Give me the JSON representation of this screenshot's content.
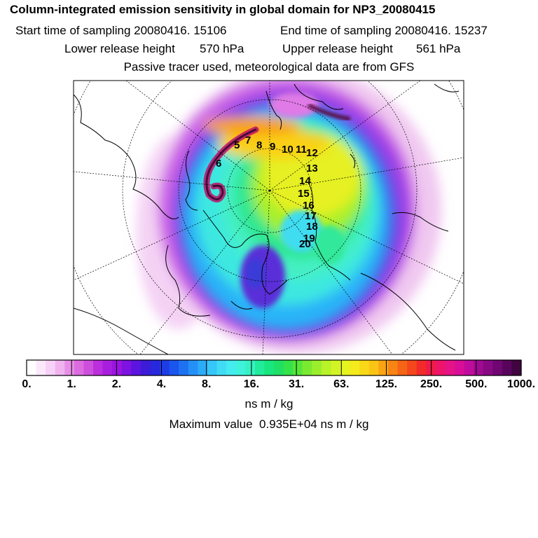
{
  "header": {
    "title": "Column-integrated emission sensitivity in global domain for NP3_20080415",
    "start_label": "Start time of sampling 20080416. 15106",
    "end_label": "End time of sampling 20080416. 15237",
    "lower_label": "Lower release height",
    "lower_value": "570 hPa",
    "upper_label": "Upper release height",
    "upper_value": "561 hPa",
    "tracer_note": "Passive tracer used, meteorological data are from GFS"
  },
  "map": {
    "trajectory_labels": [
      "5",
      "6",
      "7",
      "8",
      "9",
      "10",
      "11",
      "12",
      "13",
      "14",
      "15",
      "16",
      "17",
      "18",
      "19",
      "20"
    ]
  },
  "colorbar": {
    "tick_labels": [
      "0.",
      "1.",
      "2.",
      "4.",
      "8.",
      "16.",
      "31.",
      "63.",
      "125.",
      "250.",
      "500.",
      "1000."
    ],
    "unit": "ns m / kg",
    "colors": [
      "#ffffff",
      "#fbe9fb",
      "#f7d1f7",
      "#f0b3f0",
      "#e78fe7",
      "#dc6be0",
      "#cf4fdd",
      "#bb2fdc",
      "#a81ede",
      "#9a14e0",
      "#7e12e0",
      "#5c14e0",
      "#3d1cd8",
      "#2828de",
      "#1e3ce6",
      "#1a55ee",
      "#1e72f2",
      "#2490f6",
      "#2cacf8",
      "#36c6f8",
      "#40dcf6",
      "#44ecef",
      "#3ef2dc",
      "#36f2c2",
      "#22eb9c",
      "#18e67e",
      "#1ee064",
      "#34e24a",
      "#56e63a",
      "#7aea30",
      "#9aee2c",
      "#b8f228",
      "#d2f424",
      "#e6f420",
      "#f4ea1c",
      "#f8d818",
      "#fac414",
      "#faa414",
      "#f88414",
      "#f66416",
      "#f4481c",
      "#f22a2a",
      "#f01a48",
      "#ee146a",
      "#e61288",
      "#d80e98",
      "#c00c9c",
      "#a00a92",
      "#880884",
      "#700672",
      "#58045c",
      "#400440"
    ]
  },
  "max_value": {
    "label": "Maximum value",
    "value": "0.935E+04",
    "unit": "ns m / kg"
  }
}
